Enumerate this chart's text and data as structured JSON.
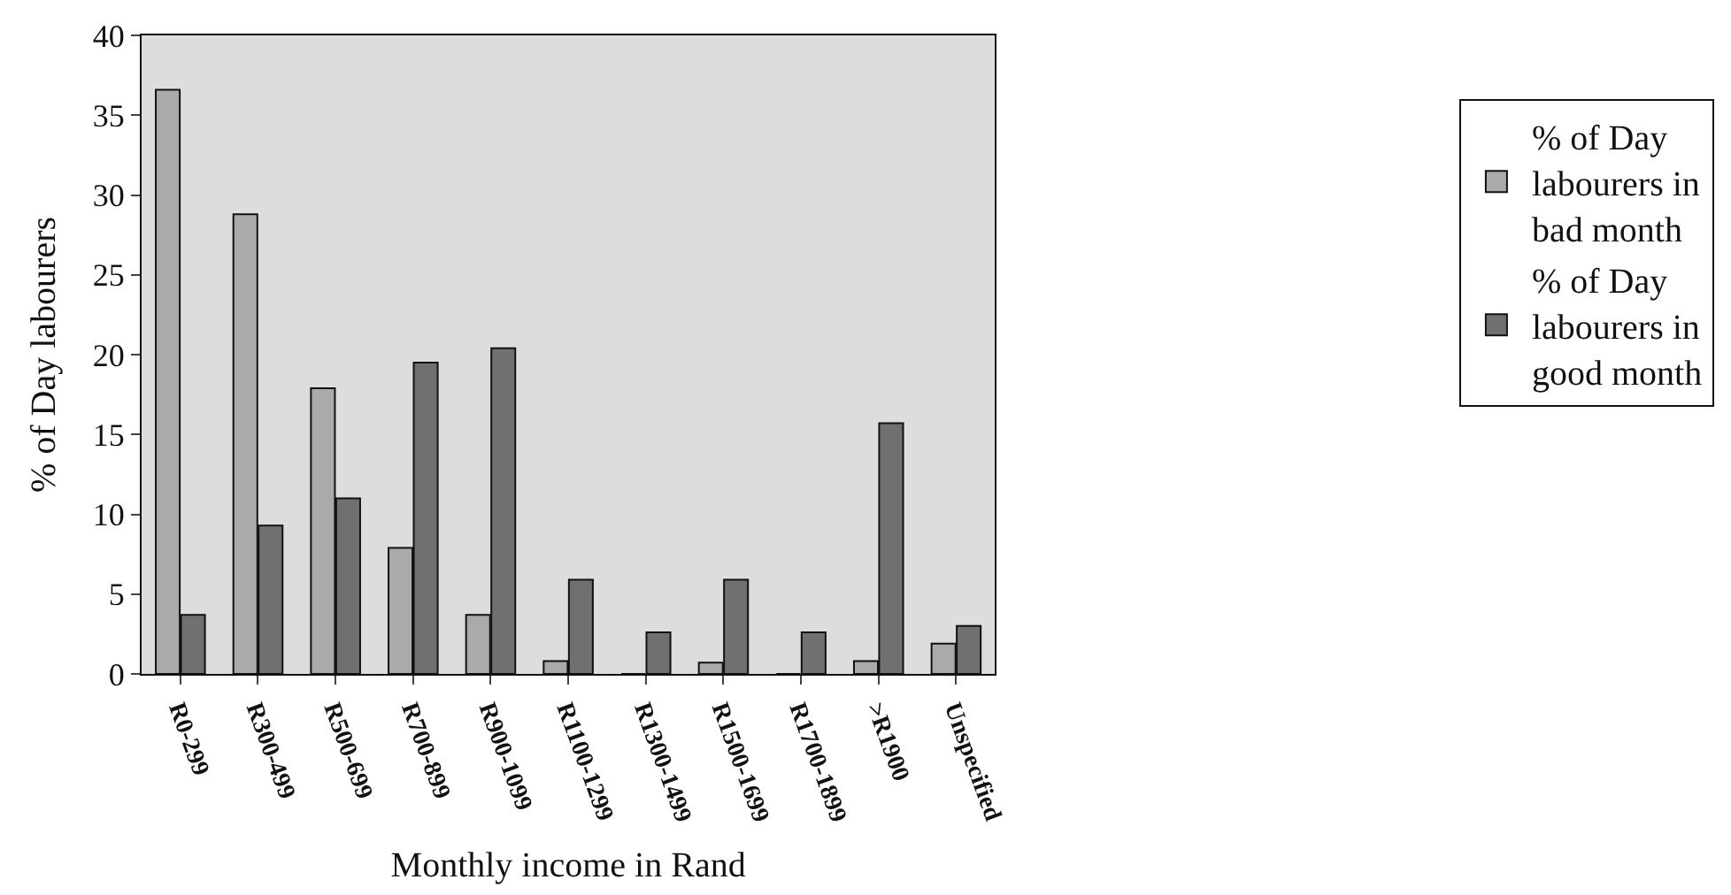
{
  "chart_data": {
    "type": "bar",
    "xlabel": "Monthly income in Rand",
    "ylabel": "% of Day labourers",
    "categories": [
      "R0-299",
      "R300-499",
      "R500-699",
      "R700-899",
      "R900-1099",
      "R1100-1299",
      "R1300-1499",
      "R1500-1699",
      "R1700-1899",
      ">R1900",
      "Unspecified"
    ],
    "series": [
      {
        "name": "% of Day labourers in bad month",
        "color": "#aaaaaa",
        "values": [
          36.6,
          28.8,
          17.9,
          7.9,
          3.7,
          0.8,
          0,
          0.7,
          0,
          0.8,
          1.9
        ]
      },
      {
        "name": "% of Day labourers in good month",
        "color": "#707070",
        "values": [
          3.7,
          9.3,
          11.0,
          19.5,
          20.4,
          5.9,
          2.6,
          5.9,
          2.6,
          15.7,
          3.0
        ]
      }
    ],
    "ylim": [
      0,
      40
    ],
    "yticks": [
      0,
      5,
      10,
      15,
      20,
      25,
      30,
      35,
      40
    ],
    "grid": false,
    "legend": "right"
  }
}
